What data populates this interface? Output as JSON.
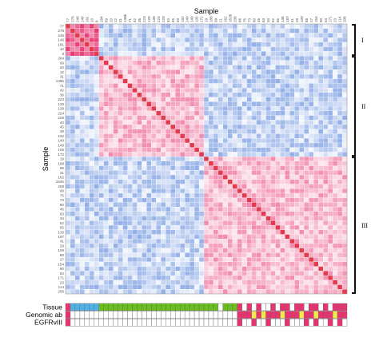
{
  "chart_data": {
    "type": "heatmap",
    "title": "",
    "xlabel": "Sample",
    "ylabel": "Sample",
    "samples": [
      "77",
      "278",
      "246",
      "146",
      "181",
      "10",
      "8",
      "284",
      "69",
      "20",
      "12",
      "31",
      "146b",
      "71",
      "42",
      "36",
      "223",
      "125",
      "139",
      "224",
      "229",
      "40",
      "45",
      "49",
      "192",
      "140",
      "149",
      "105",
      "172",
      "19",
      "188",
      "99",
      "21",
      "162",
      "162b",
      "208",
      "66",
      "75",
      "73",
      "80",
      "46",
      "63",
      "34",
      "52",
      "65",
      "136",
      "187",
      "41",
      "29",
      "109",
      "88",
      "27",
      "154",
      "90",
      "54",
      "171",
      "23",
      "114",
      "206"
    ],
    "cluster_sizes": [
      7,
      22,
      30
    ],
    "color_scale": {
      "positive": "#e8336f",
      "neutral": "#ffffff",
      "negative": "#3b6fd4",
      "diagonal": "#e33b4e"
    },
    "clusters": [
      {
        "label": "I",
        "start": 0,
        "end": 6
      },
      {
        "label": "II",
        "start": 7,
        "end": 28
      },
      {
        "label": "III",
        "start": 29,
        "end": 58
      }
    ],
    "annotation_tracks": [
      {
        "name": "Tissue",
        "values": [
          "#e8336f",
          "#4fb3e8",
          "#4fb3e8",
          "#4fb3e8",
          "#4fb3e8",
          "#4fb3e8",
          "#4fb3e8",
          "#6abf1d",
          "#6abf1d",
          "#6abf1d",
          "#6abf1d",
          "#6abf1d",
          "#6abf1d",
          "#6abf1d",
          "#6abf1d",
          "#6abf1d",
          "#6abf1d",
          "#6abf1d",
          "#6abf1d",
          "#6abf1d",
          "#6abf1d",
          "#6abf1d",
          "#6abf1d",
          "#6abf1d",
          "#6abf1d",
          "#6abf1d",
          "#6abf1d",
          "#6abf1d",
          "#6abf1d",
          "#6abf1d",
          "#6abf1d",
          "#6abf1d",
          "#ffffff",
          "#6abf1d",
          "#6abf1d",
          "#6abf1d",
          "#e8336f",
          "#ffffff",
          "#e8336f",
          "#ffffff",
          "#e8336f",
          "#ffffff",
          "#ffffff",
          "#e8336f",
          "#ffffff",
          "#e8336f",
          "#e8336f",
          "#ffffff",
          "#e8336f",
          "#e8336f",
          "#ffffff",
          "#e8336f",
          "#e8336f",
          "#ffffff",
          "#e8336f",
          "#ffffff",
          "#e8336f",
          "#e8336f",
          "#e8336f"
        ]
      },
      {
        "name": "Genomic ab",
        "values": [
          "#e8336f",
          "#ffffff",
          "#ffffff",
          "#ffffff",
          "#ffffff",
          "#ffffff",
          "#ffffff",
          "#ffffff",
          "#ffffff",
          "#ffffff",
          "#ffffff",
          "#ffffff",
          "#ffffff",
          "#ffffff",
          "#ffffff",
          "#ffffff",
          "#ffffff",
          "#ffffff",
          "#ffffff",
          "#ffffff",
          "#ffffff",
          "#ffffff",
          "#ffffff",
          "#ffffff",
          "#ffffff",
          "#ffffff",
          "#ffffff",
          "#ffffff",
          "#ffffff",
          "#ffffff",
          "#ffffff",
          "#ffffff",
          "#ffffff",
          "#ffffff",
          "#ffffff",
          "#ffffff",
          "#e8336f",
          "#e8336f",
          "#e8336f",
          "#f5e84a",
          "#e8336f",
          "#f5e84a",
          "#e8336f",
          "#e8336f",
          "#e8336f",
          "#f5e84a",
          "#e8336f",
          "#e8336f",
          "#e8336f",
          "#f5e84a",
          "#e8336f",
          "#e8336f",
          "#f5e84a",
          "#e8336f",
          "#e8336f",
          "#e8336f",
          "#f5e84a",
          "#e8336f",
          "#e8336f"
        ]
      },
      {
        "name": "EGFRvIII",
        "values": [
          "#e8336f",
          "#ffffff",
          "#ffffff",
          "#ffffff",
          "#ffffff",
          "#ffffff",
          "#ffffff",
          "#ffffff",
          "#ffffff",
          "#ffffff",
          "#ffffff",
          "#ffffff",
          "#ffffff",
          "#ffffff",
          "#ffffff",
          "#ffffff",
          "#ffffff",
          "#ffffff",
          "#ffffff",
          "#ffffff",
          "#ffffff",
          "#ffffff",
          "#ffffff",
          "#ffffff",
          "#ffffff",
          "#ffffff",
          "#ffffff",
          "#ffffff",
          "#ffffff",
          "#ffffff",
          "#ffffff",
          "#ffffff",
          "#ffffff",
          "#ffffff",
          "#ffffff",
          "#ffffff",
          "#e8336f",
          "#ffffff",
          "#ffffff",
          "#e8336f",
          "#ffffff",
          "#ffffff",
          "#e8336f",
          "#ffffff",
          "#ffffff",
          "#ffffff",
          "#e8336f",
          "#ffffff",
          "#ffffff",
          "#ffffff",
          "#e8336f",
          "#ffffff",
          "#e8336f",
          "#ffffff",
          "#ffffff",
          "#e8336f",
          "#ffffff",
          "#e8336f",
          "#ffffff"
        ]
      }
    ]
  }
}
